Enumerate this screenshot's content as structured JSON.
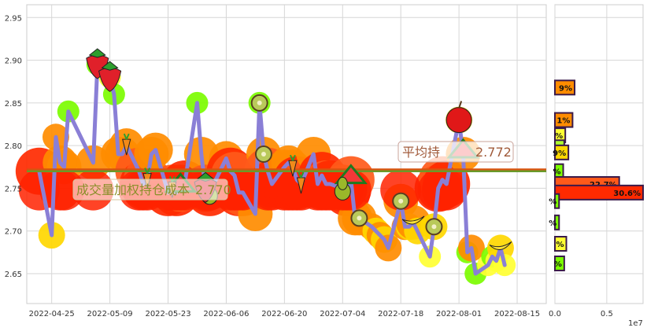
{
  "chart_data": [
    {
      "type": "line",
      "x_ticks": [
        "2022-04-25",
        "2022-05-09",
        "2022-05-23",
        "2022-06-06",
        "2022-06-20",
        "2022-07-04",
        "2022-07-18",
        "2022-08-01",
        "2022-08-15"
      ],
      "x_range": [
        "2022-04-19",
        "2022-08-22"
      ],
      "y_ticks": [
        "2.65",
        "2.70",
        "2.75",
        "2.80",
        "2.85",
        "2.90",
        "2.95"
      ],
      "ylim": [
        2.615,
        2.965
      ],
      "grid": true,
      "series": [
        {
          "kind": "daily_price",
          "color": "#8a7fd6",
          "x": [
            "2022-04-22",
            "2022-04-25",
            "2022-04-26",
            "2022-04-27",
            "2022-04-28",
            "2022-04-29",
            "2022-05-05",
            "2022-05-06",
            "2022-05-09",
            "2022-05-10",
            "2022-05-11",
            "2022-05-12",
            "2022-05-13",
            "2022-05-16",
            "2022-05-17",
            "2022-05-18",
            "2022-05-19",
            "2022-05-20",
            "2022-05-23",
            "2022-05-24",
            "2022-05-25",
            "2022-05-26",
            "2022-05-27",
            "2022-05-30",
            "2022-05-31",
            "2022-06-01",
            "2022-06-02",
            "2022-06-06",
            "2022-06-07",
            "2022-06-08",
            "2022-06-09",
            "2022-06-10",
            "2022-06-13",
            "2022-06-14",
            "2022-06-15",
            "2022-06-16",
            "2022-06-17",
            "2022-06-20",
            "2022-06-21",
            "2022-06-22",
            "2022-06-23",
            "2022-06-24",
            "2022-06-27",
            "2022-06-28",
            "2022-06-29",
            "2022-06-30",
            "2022-07-01",
            "2022-07-04",
            "2022-07-05",
            "2022-07-06",
            "2022-07-07",
            "2022-07-08",
            "2022-07-11",
            "2022-07-12",
            "2022-07-13",
            "2022-07-14",
            "2022-07-15",
            "2022-07-18",
            "2022-07-19",
            "2022-07-20",
            "2022-07-21",
            "2022-07-22",
            "2022-07-25",
            "2022-07-26",
            "2022-07-27",
            "2022-07-28",
            "2022-07-29",
            "2022-08-01",
            "2022-08-02",
            "2022-08-03",
            "2022-08-04",
            "2022-08-05",
            "2022-08-08",
            "2022-08-09",
            "2022-08-10",
            "2022-08-11",
            "2022-08-12"
          ],
          "values": [
            2.77,
            2.695,
            2.81,
            2.78,
            2.775,
            2.84,
            2.78,
            2.895,
            2.88,
            2.86,
            2.79,
            2.79,
            2.8,
            2.77,
            2.755,
            2.76,
            2.79,
            2.795,
            2.745,
            2.75,
            2.745,
            2.75,
            2.755,
            2.85,
            2.79,
            2.75,
            2.745,
            2.785,
            2.77,
            2.765,
            2.745,
            2.745,
            2.72,
            2.85,
            2.79,
            2.77,
            2.755,
            2.775,
            2.78,
            2.775,
            2.76,
            2.755,
            2.79,
            2.755,
            2.765,
            2.755,
            2.755,
            2.75,
            2.745,
            2.76,
            2.715,
            2.715,
            2.705,
            2.7,
            2.695,
            2.69,
            2.68,
            2.735,
            2.705,
            2.705,
            2.71,
            2.7,
            2.67,
            2.705,
            2.75,
            2.76,
            2.755,
            2.83,
            2.79,
            2.675,
            2.68,
            2.65,
            2.66,
            2.67,
            2.665,
            2.68,
            2.66
          ]
        },
        {
          "kind": "horizontal_line",
          "color": "#d9530f",
          "value": 2.772
        },
        {
          "kind": "horizontal_line",
          "color": "#6a9a2a",
          "value": 2.77
        }
      ],
      "annotations": [
        {
          "text": "平均持",
          "x": "2022-07-21",
          "y": 2.79
        },
        {
          "text": "2.772",
          "x": "2022-08-02",
          "y": 2.79
        },
        {
          "text": "成交量加权持仓成本",
          "x": "2022-04-26",
          "y": 2.745
        },
        {
          "text": "2.770",
          "x": "2022-06-01",
          "y": 2.745
        }
      ]
    },
    {
      "type": "bar",
      "orientation": "horizontal",
      "x_ticks": [
        "0.0",
        "0.5"
      ],
      "x_offset_label": "1e7",
      "xlim": [
        0,
        0.85
      ],
      "bars": [
        {
          "price": 2.868,
          "value": 0.19,
          "label": "9%",
          "color": "#ff8c00"
        },
        {
          "price": 2.83,
          "value": 0.17,
          "label": "1%",
          "color": "#ff8c00"
        },
        {
          "price": 2.812,
          "value": 0.1,
          "label": "%",
          "color": "#ffff33"
        },
        {
          "price": 2.798,
          "value": 0.09,
          "label": "%",
          "color": "#adff2f"
        },
        {
          "price": 2.792,
          "value": 0.13,
          "label": "9%",
          "color": "#ffd700"
        },
        {
          "price": 2.77,
          "value": 0.08,
          "label": "%",
          "color": "#7cfc00"
        },
        {
          "price": 2.755,
          "value": 0.62,
          "label": "22.7%",
          "color": "#ff5a1a"
        },
        {
          "price": 2.745,
          "value": 0.85,
          "label": "30.6%",
          "color": "#ff2a00"
        },
        {
          "price": 2.735,
          "value": 0.04,
          "label": "%",
          "color": "#7cfc00"
        },
        {
          "price": 2.71,
          "value": 0.04,
          "label": "%",
          "color": "#7cfc00"
        },
        {
          "price": 2.685,
          "value": 0.11,
          "label": "%",
          "color": "#ffff33"
        },
        {
          "price": 2.662,
          "value": 0.09,
          "label": "%",
          "color": "#7cfc00"
        }
      ]
    }
  ]
}
